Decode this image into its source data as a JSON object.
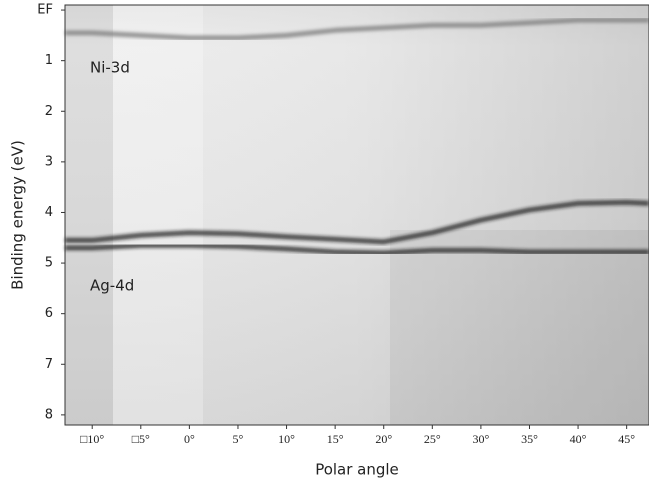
{
  "chart_data": {
    "type": "line",
    "x_label": "Polar angle",
    "y_label": "Binding energy (eV)",
    "annotations": [
      "Ni-3d",
      "Ag-4d"
    ],
    "x": [
      -12.8,
      -10,
      -5,
      0,
      5,
      10,
      15,
      20,
      25,
      30,
      35,
      40,
      45,
      47.3
    ],
    "series": [
      {
        "color": "#1a1a1a",
        "values": [
          4.55,
          4.55,
          4.45,
          4.4,
          4.42,
          4.48,
          4.53,
          4.58,
          4.4,
          4.15,
          3.95,
          3.82,
          3.8,
          3.82
        ]
      },
      {
        "color": "#1a1a1a",
        "values": [
          4.7,
          4.7,
          4.65,
          4.65,
          4.67,
          4.72,
          4.78,
          4.8,
          4.75,
          4.75,
          4.78,
          4.78,
          4.78,
          4.78
        ]
      },
      {
        "color": "#7a7a7a",
        "values": [
          0.45,
          0.45,
          0.5,
          0.55,
          0.55,
          0.5,
          0.4,
          0.35,
          0.3,
          0.3,
          0.25,
          0.2,
          0.2,
          0.2
        ]
      }
    ],
    "xlim": [
      -12.8,
      47.3
    ],
    "ylim": [
      -0.1,
      8.2
    ],
    "y_inverted": true,
    "xticks": [
      {
        "value": -10,
        "label": "□10°"
      },
      {
        "value": -5,
        "label": "□5°"
      },
      {
        "value": 0,
        "label": "0°"
      },
      {
        "value": 5,
        "label": "5°"
      },
      {
        "value": 10,
        "label": "10°"
      },
      {
        "value": 15,
        "label": "15°"
      },
      {
        "value": 20,
        "label": "20°"
      },
      {
        "value": 25,
        "label": "25°"
      },
      {
        "value": 30,
        "label": "30°"
      },
      {
        "value": 35,
        "label": "35°"
      },
      {
        "value": 40,
        "label": "40°"
      },
      {
        "value": 45,
        "label": "45°"
      }
    ],
    "yticks": [
      {
        "value": 0,
        "label": "EF"
      },
      1,
      2,
      3,
      4,
      5,
      6,
      7,
      8
    ]
  }
}
